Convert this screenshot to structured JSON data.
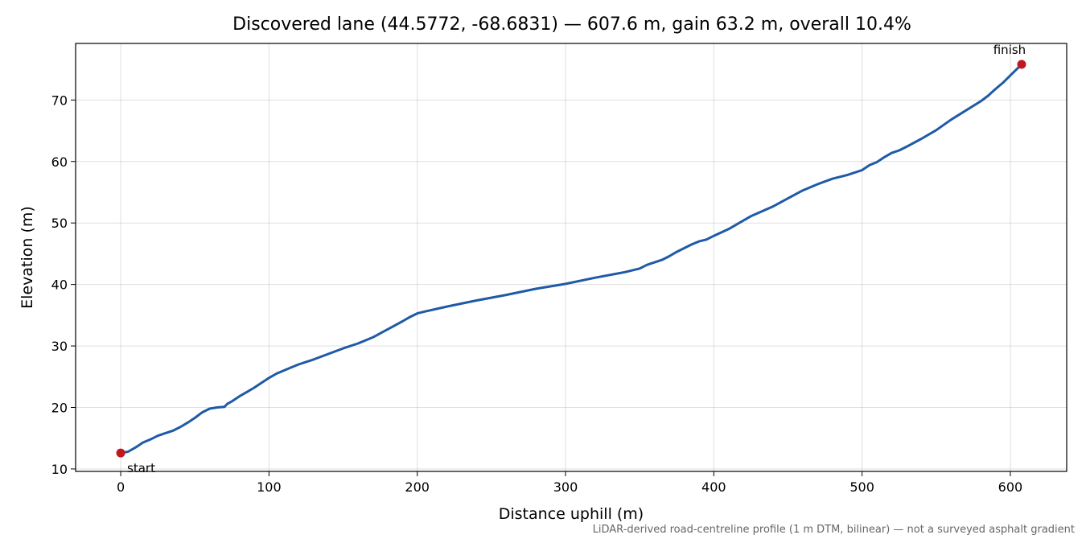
{
  "chart_data": {
    "type": "line",
    "title": "Discovered lane (44.5772, -68.6831) — 607.6 m, gain 63.2 m, overall 10.4%",
    "xlabel": "Distance uphill (m)",
    "ylabel": "Elevation (m)",
    "footnote": "LiDAR-derived road-centreline profile (1 m DTM, bilinear) — not a surveyed asphalt gradient",
    "xlim": [
      -30.4,
      638.0
    ],
    "ylim": [
      9.6,
      79.2
    ],
    "xticks": [
      0,
      100,
      200,
      300,
      400,
      500,
      600
    ],
    "yticks": [
      10,
      20,
      30,
      40,
      50,
      60,
      70
    ],
    "grid": true,
    "line_color": "#1f5aa6",
    "marker_color": "#c0181e",
    "series": [
      {
        "x": [
          0,
          5,
          10,
          15,
          20,
          25,
          30,
          35,
          40,
          45,
          50,
          55,
          60,
          65,
          70,
          72,
          75,
          80,
          85,
          90,
          95,
          100,
          105,
          110,
          115,
          120,
          130,
          140,
          150,
          160,
          170,
          180,
          190,
          195,
          200,
          205,
          220,
          240,
          260,
          280,
          300,
          320,
          340,
          350,
          355,
          365,
          370,
          375,
          380,
          385,
          390,
          395,
          400,
          410,
          420,
          425,
          440,
          450,
          460,
          470,
          480,
          490,
          500,
          505,
          510,
          515,
          520,
          525,
          530,
          540,
          550,
          560,
          570,
          580,
          585,
          590,
          595,
          600,
          607.6
        ],
        "y": [
          12.6,
          12.8,
          13.5,
          14.3,
          14.8,
          15.4,
          15.8,
          16.2,
          16.8,
          17.5,
          18.3,
          19.2,
          19.8,
          20.0,
          20.1,
          20.6,
          21.0,
          21.8,
          22.5,
          23.2,
          24.0,
          24.8,
          25.5,
          26.0,
          26.5,
          27.0,
          27.8,
          28.7,
          29.6,
          30.4,
          31.4,
          32.7,
          34.0,
          34.7,
          35.3,
          35.6,
          36.4,
          37.4,
          38.3,
          39.3,
          40.1,
          41.1,
          42.0,
          42.6,
          43.2,
          44.0,
          44.6,
          45.3,
          45.9,
          46.5,
          47.0,
          47.3,
          47.9,
          49.0,
          50.4,
          51.1,
          52.7,
          54.0,
          55.3,
          56.3,
          57.2,
          57.8,
          58.6,
          59.4,
          59.9,
          60.7,
          61.4,
          61.8,
          62.4,
          63.7,
          65.1,
          66.8,
          68.3,
          69.8,
          70.7,
          71.8,
          72.8,
          74.0,
          75.8
        ]
      }
    ],
    "annotations": [
      {
        "label": "start",
        "x": 0,
        "y": 12.6
      },
      {
        "label": "finish",
        "x": 607.6,
        "y": 75.8
      }
    ]
  }
}
